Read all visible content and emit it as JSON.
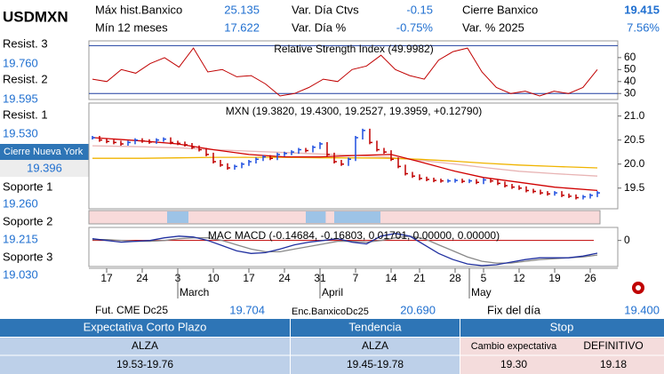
{
  "header": {
    "symbol": "USDMXN"
  },
  "stats": [
    {
      "label": "Máx hist.Banxico",
      "value": "25.135"
    },
    {
      "label": "Var. Día Ctvs",
      "value": "-0.15"
    },
    {
      "label": "Cierre Banxico",
      "value": "19.415"
    },
    {
      "label": "Mín 12 meses",
      "value": "17.622"
    },
    {
      "label": "Var. Día %",
      "value": "-0.75%"
    },
    {
      "label": "Var. % 2025",
      "value": "7.56%"
    }
  ],
  "levels": [
    {
      "label": "Resist. 3",
      "value": "19.760"
    },
    {
      "label": "Resist. 2",
      "value": "19.595"
    },
    {
      "label": "Resist. 1",
      "value": "19.530"
    }
  ],
  "ny_close": {
    "label": "Cierre Nueva York",
    "value": "19.396"
  },
  "supports": [
    {
      "label": "Soporte 1",
      "value": "19.260"
    },
    {
      "label": "Soporte 2",
      "value": "19.215"
    },
    {
      "label": "Soporte 3",
      "value": "19.030"
    }
  ],
  "chart_data": [
    {
      "type": "line",
      "title": "Relative Strength Index (49.9982)",
      "color": "#c00000",
      "values": [
        42,
        40,
        50,
        47,
        55,
        60,
        52,
        68,
        48,
        50,
        44,
        45,
        38,
        28,
        30,
        35,
        42,
        40,
        50,
        53,
        62,
        50,
        45,
        42,
        58,
        65,
        68,
        48,
        35,
        30,
        32,
        28,
        32,
        30,
        35,
        50
      ],
      "ylim": [
        25,
        74
      ],
      "yticks": [
        30,
        40,
        50,
        60
      ],
      "levels": [
        70,
        30
      ],
      "level_color": "#1f3fa0"
    },
    {
      "type": "ohlc",
      "title": "MXN (19.3820, 19.4300, 19.2527, 19.3959, +0.12790)",
      "up_color": "#1f4fe0",
      "down_color": "#c00000",
      "closes": [
        20.55,
        20.5,
        20.47,
        20.45,
        20.42,
        20.45,
        20.5,
        20.48,
        20.46,
        20.5,
        20.52,
        20.45,
        20.43,
        20.4,
        20.35,
        20.3,
        20.2,
        20.05,
        19.98,
        19.92,
        19.95,
        20.0,
        20.05,
        20.1,
        20.15,
        20.12,
        20.2,
        20.22,
        20.25,
        20.3,
        20.28,
        20.35,
        20.42,
        20.2,
        20.05,
        20.0,
        20.1,
        20.55,
        20.7,
        20.45,
        20.3,
        20.25,
        20.1,
        19.95,
        19.8,
        19.75,
        19.7,
        19.68,
        19.66,
        19.65,
        19.65,
        19.66,
        19.64,
        19.65,
        19.62,
        19.67,
        19.65,
        19.6,
        19.55,
        19.52,
        19.5,
        19.45,
        19.43,
        19.4,
        19.38,
        19.4,
        19.35,
        19.33,
        19.3,
        19.32,
        19.35,
        19.4
      ],
      "ylim": [
        19.07,
        21.27
      ],
      "yticks": [
        {
          "value": 21,
          "label": "21.0"
        },
        20.5,
        {
          "value": 20,
          "label": "20.0"
        },
        19.5
      ],
      "ma_index": [
        0,
        7,
        12,
        17,
        22,
        27,
        32,
        37,
        42,
        46,
        51,
        55,
        60,
        65,
        71
      ],
      "moving_averages": [
        {
          "color": "#e8b4b4",
          "values": [
            20.38,
            20.36,
            20.34,
            20.3,
            20.27,
            20.24,
            20.21,
            20.18,
            20.14,
            20.08,
            20.0,
            19.93,
            19.85,
            19.8,
            19.75
          ]
        },
        {
          "color": "#f0b400",
          "values": [
            20.12,
            20.12,
            20.13,
            20.14,
            20.14,
            20.14,
            20.13,
            20.13,
            20.12,
            20.1,
            20.06,
            20.02,
            19.98,
            19.95,
            19.92
          ]
        },
        {
          "color": "#d00000",
          "values": [
            20.55,
            20.48,
            20.42,
            20.3,
            20.2,
            20.15,
            20.15,
            20.18,
            20.2,
            20.05,
            19.85,
            19.72,
            19.62,
            19.52,
            19.45
          ]
        }
      ]
    },
    {
      "type": "band",
      "color": "#f8dada",
      "segment_color": "#9dc3e6",
      "segments": [
        [
          10.5,
          13.5
        ],
        [
          30,
          32.8
        ],
        [
          34,
          40.5
        ]
      ]
    },
    {
      "type": "macd",
      "title": "MAC MACD (-0.14684, -0.16803, 0.01701, 0.00000, 0.00000)",
      "series": [
        {
          "color": "#888888",
          "values": [
            0.01,
            0.01,
            0.0,
            -0.01,
            -0.01,
            0.0,
            0.02,
            0.03,
            0.03,
            0.0,
            -0.05,
            -0.1,
            -0.13,
            -0.13,
            -0.1,
            -0.07,
            -0.04,
            -0.01,
            -0.01,
            -0.02,
            0.0,
            0.03,
            0.05,
            0.02,
            -0.05,
            -0.12,
            -0.19,
            -0.24,
            -0.26,
            -0.26,
            -0.24,
            -0.22,
            -0.21,
            -0.2,
            -0.19,
            -0.168
          ]
        },
        {
          "color": "#2030a0",
          "values": [
            0.02,
            0.0,
            -0.02,
            -0.01,
            0.0,
            0.03,
            0.05,
            0.04,
            0.0,
            -0.06,
            -0.12,
            -0.15,
            -0.14,
            -0.1,
            -0.05,
            -0.02,
            0.0,
            0.02,
            -0.02,
            -0.04,
            0.05,
            0.08,
            0.05,
            -0.05,
            -0.15,
            -0.22,
            -0.27,
            -0.29,
            -0.28,
            -0.25,
            -0.22,
            -0.2,
            -0.2,
            -0.2,
            -0.18,
            -0.147
          ]
        }
      ],
      "zero_color": "#c00000",
      "ylim": [
        -0.3,
        0.15
      ],
      "yticks": [
        0
      ],
      "xticks": [
        {
          "value": 2,
          "label": "17"
        },
        {
          "value": 7,
          "label": "24"
        },
        {
          "value": 12,
          "label": "3"
        },
        {
          "value": 17,
          "label": "10"
        },
        {
          "value": 22,
          "label": "17"
        },
        {
          "value": 27,
          "label": "24"
        },
        {
          "value": 32,
          "label": "31"
        },
        {
          "value": 37,
          "label": "7"
        },
        {
          "value": 42,
          "label": "14"
        },
        {
          "value": 46,
          "label": "21"
        },
        {
          "value": 51,
          "label": "28"
        },
        {
          "value": 55,
          "label": "5"
        },
        {
          "value": 60,
          "label": "12"
        },
        {
          "value": 65,
          "label": "19"
        },
        {
          "value": 70,
          "label": "26"
        }
      ],
      "months": [
        {
          "value": 12,
          "label": "March"
        },
        {
          "value": 32,
          "label": "April"
        },
        {
          "value": 53,
          "label": "May"
        }
      ]
    }
  ],
  "footer": [
    {
      "label": "Fut. CME Dc25",
      "value": "19.704"
    },
    {
      "label": "Enc.BanxicoDc25",
      "value": "20.690"
    },
    {
      "label": "Fix del día",
      "value": "19.400"
    }
  ],
  "table": {
    "headers": [
      "Expectativa Corto Plazo",
      "Tendencia",
      "Stop"
    ],
    "rows": [
      [
        "ALZA",
        "ALZA",
        "Cambio expectativa",
        "DEFINITIVO"
      ],
      [
        "19.53-19.76",
        "19.45-19.78",
        "19.30",
        "19.18"
      ]
    ]
  }
}
